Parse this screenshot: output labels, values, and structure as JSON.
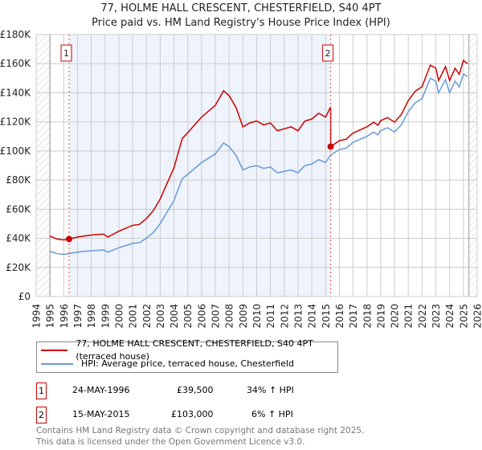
{
  "title": "77, HOLME HALL CRESCENT, CHESTERFIELD, S40 4PT",
  "subtitle": "Price paid vs. HM Land Registry's House Price Index (HPI)",
  "legend": {
    "red": "77, HOLME HALL CRESCENT, CHESTERFIELD, S40 4PT (terraced house)",
    "blue": "HPI: Average price, terraced house, Chesterfield"
  },
  "transactions": [
    {
      "num": "1",
      "date": "24-MAY-1996",
      "price": "£39,500",
      "hpi": "34% ↑ HPI"
    },
    {
      "num": "2",
      "date": "15-MAY-2015",
      "price": "£103,000",
      "hpi": "6% ↑ HPI"
    }
  ],
  "footer": {
    "line1": "Contains HM Land Registry data © Crown copyright and database right 2025.",
    "line2": "This data is licensed under the Open Government Licence v3.0."
  },
  "colors": {
    "red": "#cc0000",
    "blue": "#6a9ad4",
    "shade": "#eef3fc"
  },
  "chart_data": {
    "type": "line",
    "title": "77, HOLME HALL CRESCENT, CHESTERFIELD, S40 4PT",
    "xlim": [
      1994,
      2026
    ],
    "ylim": [
      0,
      180000
    ],
    "yticks": [
      0,
      20000,
      40000,
      60000,
      80000,
      100000,
      120000,
      140000,
      160000,
      180000
    ],
    "ytick_labels": [
      "£0",
      "£20K",
      "£40K",
      "£60K",
      "£80K",
      "£100K",
      "£120K",
      "£140K",
      "£160K",
      "£180K"
    ],
    "xticks": [
      "1994",
      "1995",
      "1996",
      "1997",
      "1998",
      "1999",
      "2000",
      "2001",
      "2002",
      "2003",
      "2004",
      "2005",
      "2006",
      "2007",
      "2008",
      "2009",
      "2010",
      "2011",
      "2012",
      "2013",
      "2014",
      "2015",
      "2016",
      "2017",
      "2018",
      "2019",
      "2020",
      "2021",
      "2022",
      "2023",
      "2024",
      "2025",
      "2026"
    ],
    "data_start": 1995.0,
    "data_end": 2025.4,
    "sales": [
      {
        "label": "1",
        "x": 1996.39,
        "y": 39500
      },
      {
        "label": "2",
        "x": 2015.37,
        "y": 103000
      }
    ],
    "series": [
      {
        "name": "HPI: Average price, terraced house, Chesterfield",
        "color": "#6a9ad4",
        "x": [
          1995.0,
          1995.5,
          1996.0,
          1996.39,
          1997.0,
          1998.0,
          1998.9,
          1999.2,
          2000.0,
          2001.0,
          2001.5,
          2002.0,
          2002.5,
          2003.0,
          2003.5,
          2004.0,
          2004.6,
          2005.0,
          2005.5,
          2006.0,
          2006.5,
          2007.0,
          2007.6,
          2008.0,
          2008.5,
          2009.0,
          2009.5,
          2010.0,
          2010.5,
          2011.0,
          2011.5,
          2012.0,
          2012.5,
          2013.0,
          2013.5,
          2014.0,
          2014.5,
          2015.0,
          2015.37,
          2016.0,
          2016.5,
          2017.0,
          2017.5,
          2018.0,
          2018.5,
          2018.8,
          2019.0,
          2019.5,
          2020.0,
          2020.5,
          2021.0,
          2021.5,
          2022.0,
          2022.6,
          2023.0,
          2023.2,
          2023.7,
          2024.0,
          2024.4,
          2024.7,
          2025.0,
          2025.3
        ],
        "y": [
          31000,
          29500,
          29000,
          29500,
          30500,
          31500,
          32000,
          30500,
          33500,
          36500,
          37000,
          40000,
          44000,
          50000,
          58000,
          66000,
          81000,
          84000,
          88000,
          92000,
          95000,
          98000,
          105500,
          103000,
          97000,
          87000,
          89000,
          90000,
          88000,
          89000,
          85000,
          86000,
          87000,
          85000,
          90000,
          91000,
          94000,
          92000,
          97200,
          101000,
          102000,
          106000,
          108000,
          110000,
          113000,
          111000,
          114000,
          116000,
          113000,
          118000,
          127000,
          133000,
          136000,
          150000,
          148000,
          140000,
          149000,
          140000,
          148000,
          144000,
          153000,
          151000
        ]
      },
      {
        "name": "77, HOLME HALL CRESCENT, CHESTERFIELD, S40 4PT (terraced house)",
        "color": "#cc0000",
        "ratio_before_sale2": 1.34,
        "ratio_after_sale2": 1.06
      }
    ]
  }
}
